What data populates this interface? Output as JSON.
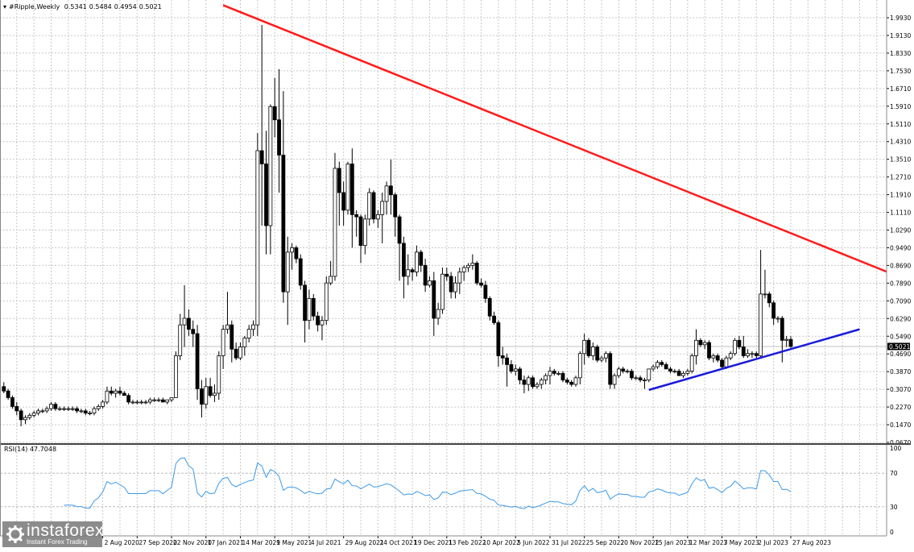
{
  "header": {
    "symbol": "#Ripple,Weekly",
    "open": "0.5341",
    "high": "0.5484",
    "low": "0.4954",
    "close": "0.5021"
  },
  "rsi_label": {
    "name": "RSI(14)",
    "value": "47.7048"
  },
  "logo": {
    "name": "instaforex",
    "tagline": "Instant Forex Trading"
  },
  "colors": {
    "bull": "#ffffff",
    "bear": "#000000",
    "wick": "#000000",
    "resistance": "#ff1a1a",
    "support": "#1a1adb",
    "rsi": "#3c9ae8",
    "grid": "#c8c8c8"
  },
  "chart_data": {
    "type": "candlestick",
    "title": "#Ripple,Weekly",
    "price_axis": {
      "ticks": [
        "1.9930",
        "1.9130",
        "1.8330",
        "1.7530",
        "1.6710",
        "1.5910",
        "1.5110",
        "1.4310",
        "1.3510",
        "1.2710",
        "1.1910",
        "1.1110",
        "1.0290",
        "0.9490",
        "0.8690",
        "0.7890",
        "0.7090",
        "0.6290",
        "0.5490",
        "0.4690",
        "0.3870",
        "0.3070",
        "0.2270",
        "0.1470",
        "0.0670"
      ],
      "range": [
        0.067,
        1.993
      ]
    },
    "current_price": "0.5021",
    "time_axis": {
      "ticks": [
        "2 Aug 2020",
        "27 Sep 2020",
        "22 Nov 2020",
        "17 Jan 2021",
        "14 Mar 2021",
        "9 May 2021",
        "4 Jul 2021",
        "29 Aug 2021",
        "24 Oct 2021",
        "19 Dec 2021",
        "13 Feb 2022",
        "10 Apr 2022",
        "5 Jun 2022",
        "31 Jul 2022",
        "25 Sep 2022",
        "20 Nov 2022",
        "15 Jan 2023",
        "12 Mar 2023",
        "7 May 2023",
        "2 Jul 2023",
        "27 Aug 2023"
      ],
      "first_tick_candle_index": 23,
      "weeks_between_ticks": 8
    },
    "ohlc": [
      [
        0.32,
        0.34,
        0.29,
        0.3
      ],
      [
        0.3,
        0.31,
        0.26,
        0.27
      ],
      [
        0.27,
        0.28,
        0.22,
        0.23
      ],
      [
        0.23,
        0.25,
        0.19,
        0.21
      ],
      [
        0.21,
        0.22,
        0.14,
        0.17
      ],
      [
        0.17,
        0.19,
        0.15,
        0.18
      ],
      [
        0.18,
        0.2,
        0.17,
        0.19
      ],
      [
        0.19,
        0.21,
        0.18,
        0.2
      ],
      [
        0.2,
        0.22,
        0.19,
        0.21
      ],
      [
        0.21,
        0.22,
        0.2,
        0.21
      ],
      [
        0.21,
        0.23,
        0.2,
        0.22
      ],
      [
        0.22,
        0.25,
        0.21,
        0.24
      ],
      [
        0.24,
        0.25,
        0.21,
        0.22
      ],
      [
        0.22,
        0.23,
        0.21,
        0.22
      ],
      [
        0.22,
        0.23,
        0.21,
        0.22
      ],
      [
        0.22,
        0.23,
        0.21,
        0.22
      ],
      [
        0.22,
        0.23,
        0.21,
        0.22
      ],
      [
        0.22,
        0.23,
        0.2,
        0.21
      ],
      [
        0.21,
        0.22,
        0.2,
        0.21
      ],
      [
        0.21,
        0.22,
        0.19,
        0.2
      ],
      [
        0.2,
        0.21,
        0.19,
        0.2
      ],
      [
        0.2,
        0.23,
        0.19,
        0.22
      ],
      [
        0.22,
        0.24,
        0.21,
        0.23
      ],
      [
        0.23,
        0.26,
        0.22,
        0.25
      ],
      [
        0.25,
        0.32,
        0.24,
        0.3
      ],
      [
        0.3,
        0.32,
        0.28,
        0.29
      ],
      [
        0.29,
        0.31,
        0.27,
        0.3
      ],
      [
        0.3,
        0.32,
        0.28,
        0.29
      ],
      [
        0.29,
        0.3,
        0.28,
        0.28
      ],
      [
        0.28,
        0.29,
        0.24,
        0.25
      ],
      [
        0.25,
        0.26,
        0.24,
        0.25
      ],
      [
        0.25,
        0.26,
        0.24,
        0.25
      ],
      [
        0.25,
        0.26,
        0.24,
        0.25
      ],
      [
        0.25,
        0.26,
        0.24,
        0.25
      ],
      [
        0.25,
        0.27,
        0.24,
        0.26
      ],
      [
        0.26,
        0.27,
        0.25,
        0.26
      ],
      [
        0.26,
        0.27,
        0.25,
        0.26
      ],
      [
        0.26,
        0.27,
        0.25,
        0.25
      ],
      [
        0.25,
        0.26,
        0.24,
        0.26
      ],
      [
        0.26,
        0.27,
        0.25,
        0.27
      ],
      [
        0.27,
        0.48,
        0.27,
        0.46
      ],
      [
        0.46,
        0.65,
        0.44,
        0.6
      ],
      [
        0.6,
        0.78,
        0.5,
        0.63
      ],
      [
        0.63,
        0.67,
        0.55,
        0.58
      ],
      [
        0.58,
        0.62,
        0.5,
        0.56
      ],
      [
        0.56,
        0.6,
        0.26,
        0.31
      ],
      [
        0.31,
        0.35,
        0.18,
        0.24
      ],
      [
        0.24,
        0.36,
        0.22,
        0.32
      ],
      [
        0.32,
        0.36,
        0.27,
        0.28
      ],
      [
        0.28,
        0.33,
        0.25,
        0.29
      ],
      [
        0.29,
        0.48,
        0.26,
        0.46
      ],
      [
        0.46,
        0.6,
        0.4,
        0.58
      ],
      [
        0.58,
        0.75,
        0.56,
        0.6
      ],
      [
        0.6,
        0.62,
        0.43,
        0.49
      ],
      [
        0.49,
        0.52,
        0.44,
        0.45
      ],
      [
        0.45,
        0.52,
        0.44,
        0.5
      ],
      [
        0.5,
        0.55,
        0.46,
        0.54
      ],
      [
        0.54,
        0.6,
        0.52,
        0.58
      ],
      [
        0.58,
        0.62,
        0.55,
        0.6
      ],
      [
        0.6,
        1.47,
        0.55,
        1.39
      ],
      [
        1.39,
        1.96,
        1.05,
        1.33
      ],
      [
        1.33,
        1.48,
        0.92,
        1.05
      ],
      [
        1.05,
        1.6,
        0.92,
        1.59
      ],
      [
        1.59,
        1.72,
        1.45,
        1.53
      ],
      [
        1.53,
        1.76,
        1.2,
        1.37
      ],
      [
        1.37,
        1.66,
        0.7,
        0.75
      ],
      [
        0.75,
        1.0,
        0.6,
        0.93
      ],
      [
        0.93,
        0.97,
        0.85,
        0.95
      ],
      [
        0.95,
        0.96,
        0.88,
        0.9
      ],
      [
        0.9,
        0.92,
        0.76,
        0.78
      ],
      [
        0.78,
        0.8,
        0.52,
        0.62
      ],
      [
        0.62,
        0.76,
        0.58,
        0.72
      ],
      [
        0.72,
        0.74,
        0.62,
        0.64
      ],
      [
        0.64,
        0.66,
        0.57,
        0.6
      ],
      [
        0.6,
        0.64,
        0.53,
        0.62
      ],
      [
        0.62,
        0.82,
        0.6,
        0.79
      ],
      [
        0.79,
        0.89,
        0.78,
        0.82
      ],
      [
        0.82,
        1.38,
        0.8,
        1.31
      ],
      [
        1.31,
        1.34,
        1.05,
        1.2
      ],
      [
        1.2,
        1.25,
        1.05,
        1.12
      ],
      [
        1.12,
        1.34,
        1.1,
        1.33
      ],
      [
        1.33,
        1.4,
        0.95,
        1.1
      ],
      [
        1.1,
        1.12,
        1.0,
        1.09
      ],
      [
        1.09,
        1.1,
        0.88,
        0.96
      ],
      [
        0.96,
        1.1,
        0.92,
        1.08
      ],
      [
        1.08,
        1.22,
        1.05,
        1.2
      ],
      [
        1.2,
        1.21,
        1.06,
        1.08
      ],
      [
        1.08,
        1.12,
        1.04,
        1.1
      ],
      [
        1.1,
        1.2,
        0.97,
        1.16
      ],
      [
        1.16,
        1.25,
        1.1,
        1.23
      ],
      [
        1.23,
        1.35,
        1.1,
        1.19
      ],
      [
        1.19,
        1.2,
        1.0,
        1.09
      ],
      [
        1.09,
        1.1,
        0.8,
        0.97
      ],
      [
        0.97,
        1.0,
        0.72,
        0.82
      ],
      [
        0.82,
        0.92,
        0.78,
        0.85
      ],
      [
        0.85,
        0.86,
        0.8,
        0.84
      ],
      [
        0.84,
        0.96,
        0.82,
        0.93
      ],
      [
        0.93,
        0.94,
        0.84,
        0.87
      ],
      [
        0.87,
        0.9,
        0.75,
        0.78
      ],
      [
        0.78,
        0.82,
        0.77,
        0.8
      ],
      [
        0.8,
        0.84,
        0.55,
        0.63
      ],
      [
        0.63,
        0.7,
        0.6,
        0.67
      ],
      [
        0.67,
        0.86,
        0.65,
        0.83
      ],
      [
        0.83,
        0.86,
        0.8,
        0.82
      ],
      [
        0.82,
        0.84,
        0.72,
        0.75
      ],
      [
        0.75,
        0.82,
        0.72,
        0.79
      ],
      [
        0.79,
        0.86,
        0.74,
        0.84
      ],
      [
        0.84,
        0.87,
        0.8,
        0.86
      ],
      [
        0.86,
        0.88,
        0.84,
        0.87
      ],
      [
        0.87,
        0.92,
        0.85,
        0.88
      ],
      [
        0.88,
        0.89,
        0.78,
        0.79
      ],
      [
        0.79,
        0.81,
        0.77,
        0.78
      ],
      [
        0.78,
        0.8,
        0.7,
        0.72
      ],
      [
        0.72,
        0.73,
        0.62,
        0.64
      ],
      [
        0.64,
        0.66,
        0.6,
        0.61
      ],
      [
        0.61,
        0.62,
        0.41,
        0.46
      ],
      [
        0.46,
        0.5,
        0.42,
        0.45
      ],
      [
        0.45,
        0.47,
        0.32,
        0.42
      ],
      [
        0.42,
        0.44,
        0.38,
        0.39
      ],
      [
        0.39,
        0.42,
        0.37,
        0.4
      ],
      [
        0.4,
        0.41,
        0.33,
        0.35
      ],
      [
        0.35,
        0.37,
        0.29,
        0.33
      ],
      [
        0.33,
        0.37,
        0.3,
        0.36
      ],
      [
        0.36,
        0.37,
        0.31,
        0.32
      ],
      [
        0.32,
        0.34,
        0.31,
        0.33
      ],
      [
        0.33,
        0.36,
        0.31,
        0.35
      ],
      [
        0.35,
        0.38,
        0.33,
        0.37
      ],
      [
        0.37,
        0.41,
        0.33,
        0.39
      ],
      [
        0.39,
        0.4,
        0.37,
        0.38
      ],
      [
        0.38,
        0.39,
        0.37,
        0.38
      ],
      [
        0.38,
        0.39,
        0.34,
        0.35
      ],
      [
        0.35,
        0.36,
        0.33,
        0.34
      ],
      [
        0.34,
        0.35,
        0.32,
        0.33
      ],
      [
        0.33,
        0.37,
        0.32,
        0.36
      ],
      [
        0.36,
        0.48,
        0.33,
        0.47
      ],
      [
        0.47,
        0.56,
        0.42,
        0.53
      ],
      [
        0.53,
        0.54,
        0.45,
        0.46
      ],
      [
        0.46,
        0.52,
        0.44,
        0.5
      ],
      [
        0.5,
        0.51,
        0.43,
        0.44
      ],
      [
        0.44,
        0.46,
        0.43,
        0.45
      ],
      [
        0.45,
        0.48,
        0.43,
        0.47
      ],
      [
        0.47,
        0.48,
        0.31,
        0.33
      ],
      [
        0.33,
        0.38,
        0.31,
        0.37
      ],
      [
        0.37,
        0.41,
        0.36,
        0.4
      ],
      [
        0.4,
        0.41,
        0.38,
        0.39
      ],
      [
        0.39,
        0.4,
        0.38,
        0.39
      ],
      [
        0.39,
        0.4,
        0.35,
        0.36
      ],
      [
        0.36,
        0.37,
        0.35,
        0.36
      ],
      [
        0.36,
        0.37,
        0.34,
        0.35
      ],
      [
        0.35,
        0.36,
        0.31,
        0.35
      ],
      [
        0.35,
        0.4,
        0.34,
        0.4
      ],
      [
        0.4,
        0.42,
        0.39,
        0.41
      ],
      [
        0.41,
        0.44,
        0.4,
        0.43
      ],
      [
        0.43,
        0.44,
        0.41,
        0.42
      ],
      [
        0.42,
        0.43,
        0.4,
        0.4
      ],
      [
        0.4,
        0.41,
        0.38,
        0.39
      ],
      [
        0.39,
        0.4,
        0.38,
        0.39
      ],
      [
        0.39,
        0.4,
        0.37,
        0.37
      ],
      [
        0.37,
        0.39,
        0.36,
        0.38
      ],
      [
        0.38,
        0.4,
        0.37,
        0.39
      ],
      [
        0.39,
        0.47,
        0.38,
        0.46
      ],
      [
        0.46,
        0.58,
        0.42,
        0.53
      ],
      [
        0.53,
        0.54,
        0.5,
        0.51
      ],
      [
        0.51,
        0.53,
        0.49,
        0.52
      ],
      [
        0.52,
        0.53,
        0.44,
        0.45
      ],
      [
        0.45,
        0.47,
        0.43,
        0.46
      ],
      [
        0.46,
        0.47,
        0.43,
        0.44
      ],
      [
        0.44,
        0.45,
        0.4,
        0.41
      ],
      [
        0.41,
        0.46,
        0.4,
        0.45
      ],
      [
        0.45,
        0.48,
        0.44,
        0.47
      ],
      [
        0.47,
        0.54,
        0.46,
        0.53
      ],
      [
        0.53,
        0.55,
        0.49,
        0.5
      ],
      [
        0.5,
        0.55,
        0.45,
        0.46
      ],
      [
        0.46,
        0.49,
        0.45,
        0.47
      ],
      [
        0.47,
        0.48,
        0.45,
        0.47
      ],
      [
        0.47,
        0.48,
        0.45,
        0.46
      ],
      [
        0.46,
        0.94,
        0.45,
        0.74
      ],
      [
        0.74,
        0.85,
        0.72,
        0.74
      ],
      [
        0.74,
        0.75,
        0.68,
        0.7
      ],
      [
        0.7,
        0.71,
        0.6,
        0.63
      ],
      [
        0.63,
        0.64,
        0.61,
        0.63
      ],
      [
        0.63,
        0.64,
        0.43,
        0.53
      ],
      [
        0.53,
        0.55,
        0.5,
        0.5341
      ],
      [
        0.5341,
        0.5484,
        0.4954,
        0.5021
      ]
    ],
    "trendlines": [
      {
        "name": "resistance",
        "from": {
          "candle": 51,
          "price": 2.05
        },
        "to": {
          "candle": 208,
          "price": 0.82
        }
      },
      {
        "name": "support",
        "from": {
          "candle": 150,
          "price": 0.305
        },
        "to": {
          "candle": 199,
          "price": 0.58
        }
      }
    ],
    "rsi": {
      "period": 14,
      "levels": [
        "100",
        "70",
        "30",
        "0"
      ],
      "range": [
        0,
        100
      ],
      "last_value": 47.7048
    }
  }
}
